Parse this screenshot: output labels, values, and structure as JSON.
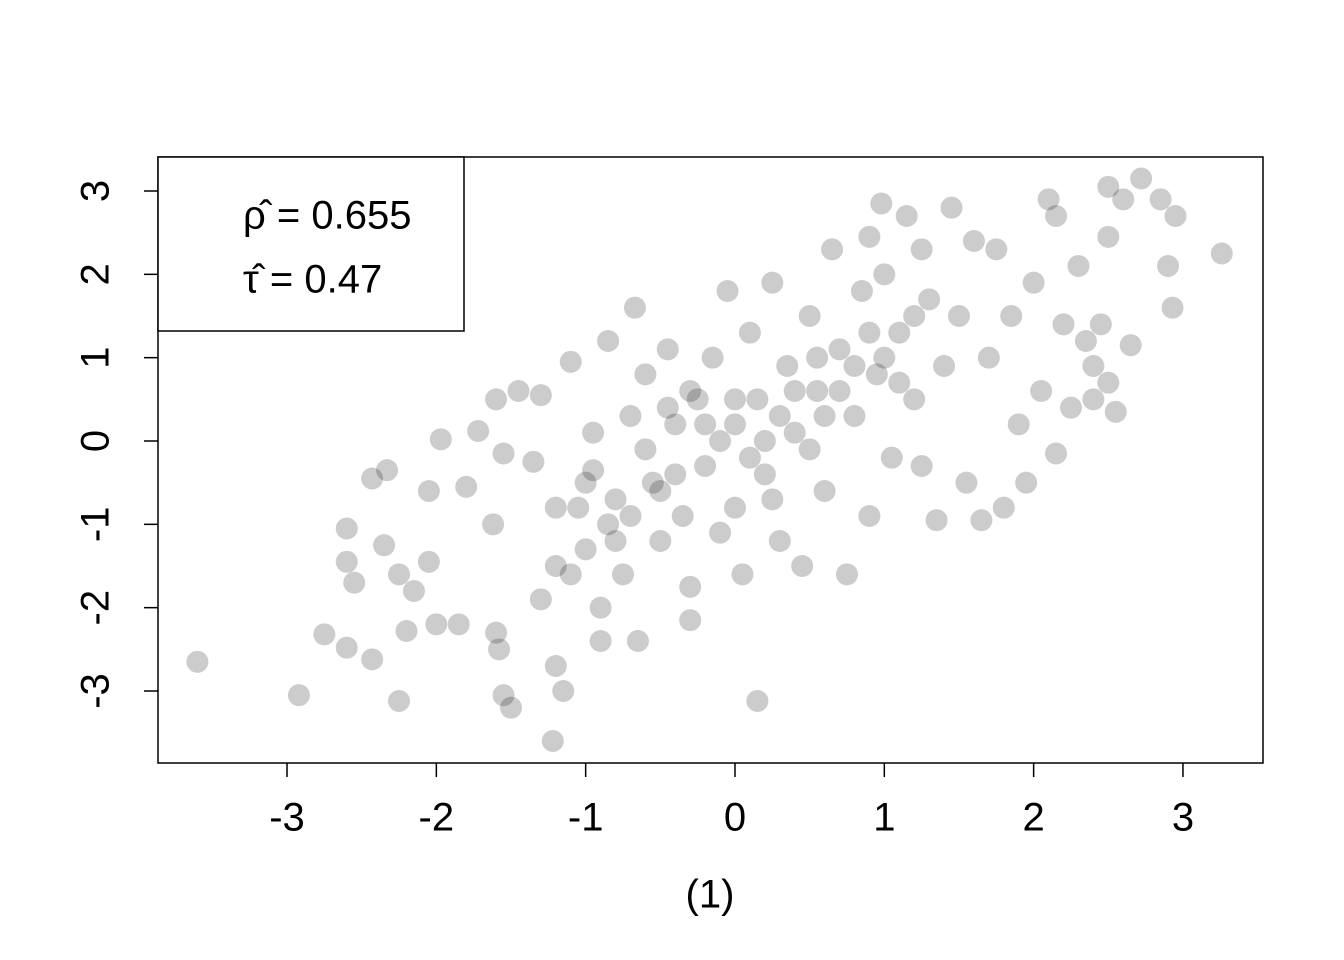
{
  "chart_data": {
    "type": "scatter",
    "x_label": "(1)",
    "annotations": [
      "ρ̂ = 0.655",
      "τ̂ = 0.47"
    ],
    "color": "rgba(0,0,0,0.2)",
    "xlim": [
      -3.864,
      3.536
    ],
    "ylim": [
      -3.864,
      3.408
    ],
    "xticks": [
      -3,
      -2,
      -1,
      0,
      1,
      2,
      3
    ],
    "yticks": [
      -3,
      -2,
      -1,
      0,
      1,
      2,
      3
    ],
    "x": [
      -3.6,
      -2.92,
      -2.25,
      -1.22,
      0.15,
      3.26,
      2.72,
      2.93,
      2.5,
      0.98,
      -0.67,
      -2.6,
      -1.97,
      -1.5,
      -2.75,
      -2.6,
      -2.43,
      -2.2,
      -2.6,
      -2.55,
      -2.43,
      -2.33,
      -2.35,
      -2.25,
      -2.15,
      -2.0,
      -1.85,
      -2.05,
      -2.05,
      -1.8,
      -1.72,
      -1.6,
      -1.55,
      -1.62,
      -1.6,
      -1.58,
      -1.55,
      -1.45,
      -1.35,
      -1.3,
      -1.2,
      -1.2,
      -1.15,
      -1.1,
      -1.05,
      -1.0,
      -0.95,
      -0.9,
      -0.9,
      -0.85,
      -0.8,
      -0.75,
      -0.7,
      -0.65,
      -0.6,
      -0.55,
      -0.5,
      -0.45,
      -0.4,
      -0.35,
      -0.3,
      -0.3,
      -0.25,
      -0.2,
      -0.15,
      -0.1,
      -0.05,
      0.0,
      0.0,
      0.05,
      0.1,
      0.15,
      0.2,
      0.25,
      0.3,
      0.35,
      0.4,
      0.45,
      0.5,
      0.55,
      0.6,
      0.65,
      0.7,
      0.75,
      0.8,
      0.85,
      0.9,
      0.95,
      1.0,
      1.05,
      1.1,
      1.15,
      1.2,
      1.25,
      1.3,
      1.35,
      1.4,
      1.45,
      1.5,
      1.55,
      1.6,
      1.65,
      1.7,
      1.75,
      1.8,
      1.85,
      1.9,
      1.95,
      2.0,
      2.05,
      2.1,
      2.15,
      2.2,
      2.25,
      2.3,
      2.35,
      2.4,
      2.45,
      2.5,
      2.55,
      2.6,
      2.65,
      2.85,
      2.95,
      2.9,
      2.5,
      2.4,
      2.15,
      1.25,
      0.9,
      -0.85,
      -0.6,
      -0.4,
      -0.2,
      0.0,
      0.2,
      0.4,
      0.6,
      0.8,
      -1.0,
      -1.2,
      -0.7,
      -0.3,
      0.1,
      0.5,
      0.7,
      1.0,
      1.2,
      -0.5,
      -0.1,
      0.3,
      -0.8,
      -1.1,
      -1.3,
      0.9,
      1.1,
      -0.45,
      0.25,
      0.55,
      -0.95
    ],
    "values": [
      -2.65,
      -3.05,
      -3.12,
      -3.6,
      -3.12,
      2.25,
      3.15,
      1.6,
      3.05,
      2.85,
      1.6,
      -1.05,
      0.02,
      -3.2,
      -2.32,
      -2.48,
      -2.62,
      -2.28,
      -1.45,
      -1.7,
      -0.45,
      -0.35,
      -1.25,
      -1.6,
      -1.8,
      -2.2,
      -2.2,
      -0.6,
      -1.45,
      -0.55,
      0.12,
      0.5,
      -0.15,
      -1.0,
      -2.3,
      -2.5,
      -3.05,
      0.6,
      -0.25,
      0.55,
      -1.5,
      -2.7,
      -3.0,
      0.95,
      -0.8,
      -1.3,
      0.1,
      -2.0,
      -2.4,
      1.2,
      -0.7,
      -1.6,
      0.3,
      -2.4,
      0.8,
      -0.5,
      -1.2,
      1.1,
      0.2,
      -0.9,
      -1.75,
      -2.15,
      0.5,
      -0.3,
      1.0,
      -1.1,
      1.8,
      0.2,
      -0.8,
      -1.6,
      1.3,
      0.5,
      -0.4,
      1.9,
      -1.2,
      0.9,
      0.1,
      -1.5,
      1.5,
      0.6,
      -0.6,
      2.3,
      1.1,
      -1.6,
      0.3,
      1.8,
      -0.9,
      0.8,
      2.0,
      -0.2,
      1.3,
      2.7,
      0.5,
      -0.3,
      1.7,
      -0.95,
      0.9,
      2.8,
      1.5,
      -0.5,
      2.4,
      -0.95,
      1.0,
      2.3,
      -0.8,
      1.5,
      0.2,
      -0.5,
      1.9,
      0.6,
      2.9,
      -0.15,
      1.4,
      0.4,
      2.1,
      1.2,
      0.5,
      1.4,
      2.45,
      0.35,
      2.9,
      1.15,
      2.9,
      2.7,
      2.1,
      0.7,
      0.9,
      2.7,
      2.3,
      2.45,
      -1.0,
      -0.1,
      -0.4,
      0.2,
      0.5,
      0.0,
      0.6,
      0.3,
      0.9,
      -0.5,
      -0.8,
      -0.9,
      0.6,
      -0.2,
      -0.1,
      0.6,
      1.0,
      1.5,
      -0.6,
      0.0,
      0.3,
      -1.2,
      -1.6,
      -1.9,
      1.3,
      0.7,
      0.4,
      -0.7,
      1.0,
      -0.35
    ]
  }
}
